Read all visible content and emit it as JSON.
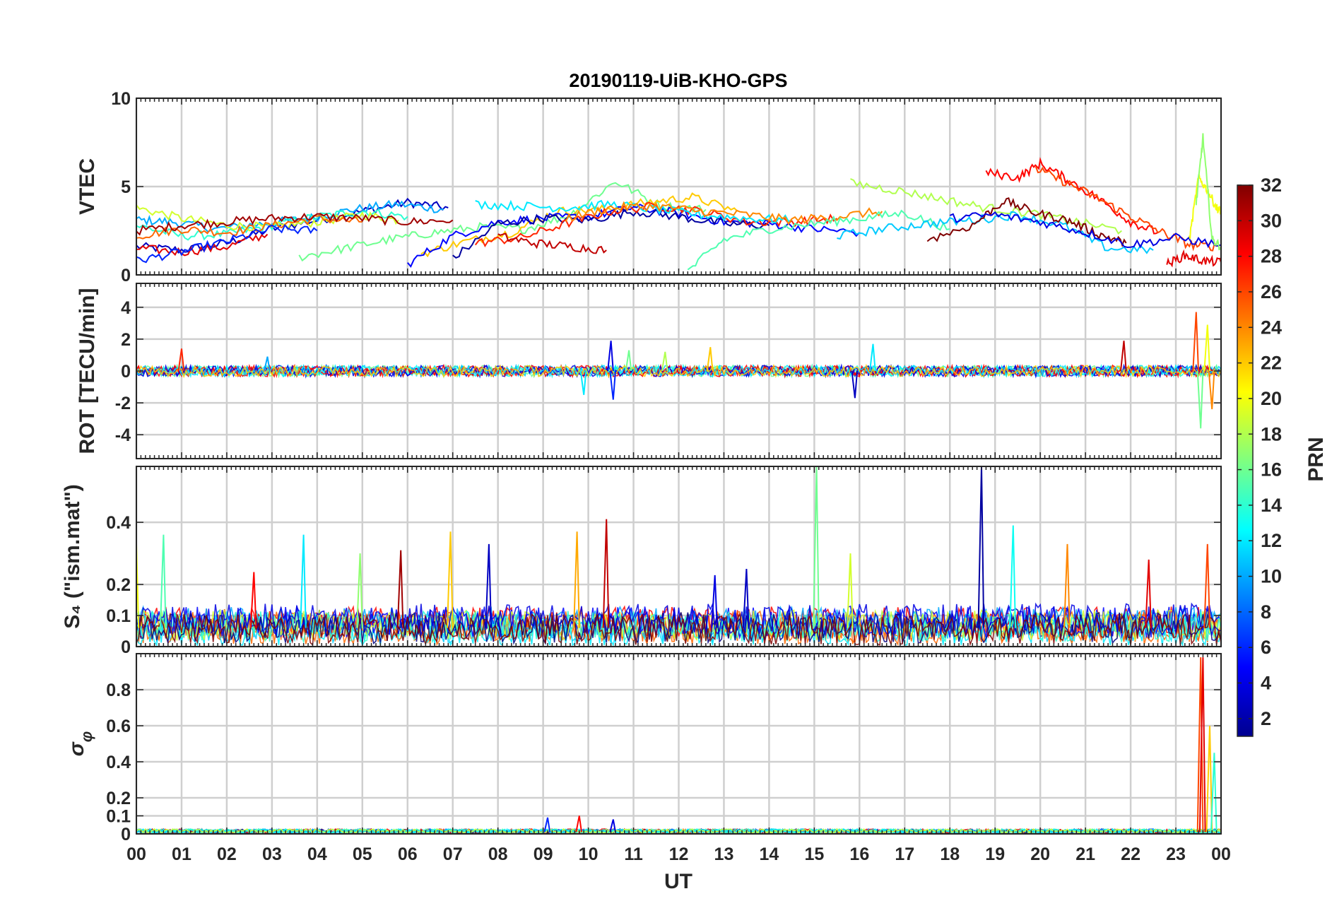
{
  "chart_data": {
    "type": "line",
    "title": "20190119-UiB-KHO-GPS",
    "xlabel": "UT",
    "x_tick_labels": [
      "00",
      "01",
      "02",
      "03",
      "04",
      "05",
      "06",
      "07",
      "08",
      "09",
      "10",
      "11",
      "12",
      "13",
      "14",
      "15",
      "16",
      "17",
      "18",
      "19",
      "20",
      "21",
      "22",
      "23",
      "00"
    ],
    "xlim": [
      0,
      24
    ],
    "grid": true,
    "colorbar": {
      "label": "PRN",
      "range": [
        1,
        32
      ],
      "ticks": [
        "2",
        "4",
        "6",
        "8",
        "10",
        "12",
        "14",
        "16",
        "18",
        "20",
        "22",
        "24",
        "26",
        "28",
        "30",
        "32"
      ],
      "colormap": "jet",
      "placement": "right"
    },
    "panels": [
      {
        "id": "vtec",
        "ylabel": "VTEC",
        "ylim": [
          0,
          10
        ],
        "y_ticks": [
          0,
          5,
          10
        ],
        "y_tick_labels": [
          "0",
          "5",
          "10"
        ],
        "description_series": "one line per GPS satellite PRN, coloured by PRN",
        "series": [
          {
            "prn": 3,
            "x": [
              0,
              1,
              2,
              3,
              4,
              5,
              6,
              6.9
            ],
            "y": [
              1.6,
              1.4,
              1.8,
              2.6,
              3.1,
              3.6,
              4.1,
              3.8
            ]
          },
          {
            "prn": 10,
            "x": [
              0,
              0.8,
              1.8,
              2.8,
              3.8,
              4.8,
              5.8,
              6.8
            ],
            "y": [
              3.1,
              3.0,
              2.6,
              2.9,
              3.2,
              3.7,
              4.0,
              3.7
            ]
          },
          {
            "prn": 14,
            "x": [
              0,
              1,
              2,
              3,
              4,
              5,
              6
            ],
            "y": [
              2.8,
              2.2,
              2.3,
              2.8,
              3.3,
              3.6,
              3.3
            ]
          },
          {
            "prn": 19,
            "x": [
              0,
              1,
              2,
              3,
              4,
              5,
              5.8
            ],
            "y": [
              3.8,
              3.2,
              2.8,
              2.7,
              3.0,
              3.4,
              3.1
            ]
          },
          {
            "prn": 25,
            "x": [
              0,
              1,
              2,
              3,
              4,
              5
            ],
            "y": [
              2.2,
              2.6,
              2.4,
              2.8,
              3.2,
              3.0
            ]
          },
          {
            "prn": 29,
            "x": [
              0,
              1,
              2,
              2.9
            ],
            "y": [
              1.5,
              1.3,
              1.6,
              2.3
            ]
          },
          {
            "prn": 31,
            "x": [
              0,
              1,
              2,
              3,
              4,
              5,
              6,
              7
            ],
            "y": [
              2.5,
              2.8,
              3.0,
              3.2,
              3.3,
              3.2,
              3.0,
              3.1
            ]
          },
          {
            "prn": 6,
            "x": [
              0,
              1,
              2,
              3,
              4
            ],
            "y": [
              0.8,
              1.3,
              1.9,
              2.6,
              2.5
            ]
          },
          {
            "prn": 16,
            "x": [
              3.6,
              4.6,
              5.6,
              6.6,
              7.6,
              8.6,
              9.6,
              10.6,
              11.6,
              12.6
            ],
            "y": [
              1.0,
              1.5,
              2.0,
              2.4,
              2.7,
              2.6,
              3.4,
              5.3,
              3.9,
              3.7
            ]
          },
          {
            "prn": 22,
            "x": [
              6.3,
              7.3,
              8.3,
              9.3,
              10.3,
              11.3,
              12.3,
              13.3
            ],
            "y": [
              1.2,
              1.9,
              2.4,
              3.6,
              3.7,
              4.1,
              4.4,
              3.6
            ]
          },
          {
            "prn": 5,
            "x": [
              6.0,
              7,
              8,
              9,
              10,
              11,
              12,
              13,
              14,
              15,
              16
            ],
            "y": [
              0.6,
              2.2,
              3.0,
              3.2,
              3.3,
              3.8,
              3.5,
              3.0,
              2.9,
              2.6,
              2.4
            ]
          },
          {
            "prn": 2,
            "x": [
              7.0,
              8,
              9,
              10,
              11,
              12,
              13,
              14
            ],
            "y": [
              0.9,
              2.9,
              3.2,
              3.1,
              3.6,
              3.3,
              2.9,
              2.8
            ]
          },
          {
            "prn": 27,
            "x": [
              7.5,
              8.5,
              9.5,
              10.5,
              11.5,
              12.5,
              13.5,
              14.5,
              15.5
            ],
            "y": [
              1.8,
              2.1,
              2.9,
              3.6,
              3.9,
              3.6,
              3.0,
              3.0,
              3.2
            ]
          },
          {
            "prn": 30,
            "x": [
              8,
              8.8,
              9.6,
              10.4
            ],
            "y": [
              2.2,
              1.8,
              1.6,
              1.4
            ]
          },
          {
            "prn": 12,
            "x": [
              7.5,
              8.5,
              9.5,
              10.5,
              11.5,
              12.5,
              13.5,
              14.5
            ],
            "y": [
              4.0,
              3.9,
              3.8,
              4.0,
              3.7,
              3.4,
              3.2,
              3.1
            ]
          },
          {
            "prn": 24,
            "x": [
              9.5,
              10.5,
              11.5,
              12.5,
              13.5,
              14.5,
              15.5,
              16.5
            ],
            "y": [
              3.2,
              3.8,
              3.9,
              3.6,
              3.4,
              3.1,
              3.3,
              3.6
            ]
          },
          {
            "prn": 15,
            "x": [
              12.2,
              13,
              14,
              15,
              16,
              17,
              18
            ],
            "y": [
              0.2,
              2.0,
              2.6,
              2.9,
              3.2,
              3.5,
              2.6
            ]
          },
          {
            "prn": 18,
            "x": [
              15.8,
              16.8,
              17.8,
              18.8,
              19.8,
              20.8,
              21.8
            ],
            "y": [
              5.2,
              4.8,
              4.3,
              3.8,
              3.5,
              3.0,
              2.5
            ]
          },
          {
            "prn": 11,
            "x": [
              15.5,
              16.5,
              17.5,
              18.5,
              19.5,
              20.5,
              21.5,
              22.5
            ],
            "y": [
              2.2,
              2.6,
              2.9,
              3.1,
              3.4,
              2.8,
              1.5,
              1.4
            ]
          },
          {
            "prn": 28,
            "x": [
              18.8,
              19.5,
              20,
              20.6,
              21.3,
              22,
              22.6
            ],
            "y": [
              5.8,
              5.5,
              6.3,
              5.4,
              4.3,
              3.0,
              2.4
            ]
          },
          {
            "prn": 26,
            "x": [
              19.9,
              20.6,
              21.3,
              22,
              22.7,
              23.3,
              23.9
            ],
            "y": [
              6.0,
              5.2,
              4.3,
              3.3,
              2.4,
              1.7,
              1.6
            ]
          },
          {
            "prn": 32,
            "x": [
              17.5,
              18.5,
              19.2,
              19.9,
              20.6,
              21.3,
              21.9
            ],
            "y": [
              2.0,
              2.8,
              4.2,
              3.5,
              3.1,
              2.3,
              1.8
            ]
          },
          {
            "prn": 4,
            "x": [
              18,
              19,
              20,
              21,
              22,
              23,
              24
            ],
            "y": [
              3.2,
              3.4,
              3.0,
              2.4,
              1.7,
              2.1,
              1.7
            ]
          },
          {
            "prn": 20,
            "x": [
              23.3,
              23.5,
              23.7,
              23.9,
              24
            ],
            "y": [
              2.0,
              5.5,
              4.8,
              3.8,
              3.6
            ]
          },
          {
            "prn": 17,
            "x": [
              23.45,
              23.6,
              23.8,
              24
            ],
            "y": [
              4.0,
              7.8,
              2.0,
              1.6
            ]
          },
          {
            "prn": 29,
            "x": [
              22.8,
              23.2,
              23.6,
              24
            ],
            "y": [
              0.6,
              1.1,
              0.8,
              0.7
            ]
          }
        ]
      },
      {
        "id": "rot",
        "ylabel": "ROT [TECU/min]",
        "ylim": [
          -5.5,
          5.5
        ],
        "y_ticks": [
          -4,
          -2,
          0,
          2,
          4
        ],
        "y_tick_labels": [
          "-4",
          "-2",
          "0",
          "2",
          "4"
        ],
        "description_series": "rate of TEC per PRN; noise around 0, larger excursions near 10.5 UT, 15.9 UT, 21.8 UT and 23.5-24 UT",
        "peaks": [
          {
            "x": 1.0,
            "y": 1.4,
            "prn": 27
          },
          {
            "x": 2.9,
            "y": 0.9,
            "prn": 10
          },
          {
            "x": 9.9,
            "y": -1.5,
            "prn": 12
          },
          {
            "x": 10.5,
            "y": 1.9,
            "prn": 4
          },
          {
            "x": 10.55,
            "y": -1.8,
            "prn": 6
          },
          {
            "x": 10.9,
            "y": 1.3,
            "prn": 16
          },
          {
            "x": 11.7,
            "y": 1.2,
            "prn": 18
          },
          {
            "x": 12.7,
            "y": 1.5,
            "prn": 22
          },
          {
            "x": 15.9,
            "y": -1.7,
            "prn": 3
          },
          {
            "x": 16.3,
            "y": 1.7,
            "prn": 12
          },
          {
            "x": 21.85,
            "y": 1.9,
            "prn": 30
          },
          {
            "x": 23.45,
            "y": 3.7,
            "prn": 26
          },
          {
            "x": 23.55,
            "y": -3.6,
            "prn": 16
          },
          {
            "x": 23.7,
            "y": 2.9,
            "prn": 20
          },
          {
            "x": 23.8,
            "y": -2.4,
            "prn": 24
          }
        ]
      },
      {
        "id": "s4",
        "ylabel": "S₄ (\"ism.mat\")",
        "ylim": [
          0,
          0.58
        ],
        "y_ticks": [
          0,
          0.1,
          0.2,
          0.4
        ],
        "y_tick_labels": [
          "0",
          "0.1",
          "0.2",
          "0.4"
        ],
        "description_series": "S4 amplitude scintillation index per PRN; baseline ~0.05-0.1 with spikes",
        "peaks": [
          {
            "x": 0.0,
            "y": 0.33,
            "prn": 20
          },
          {
            "x": 0.6,
            "y": 0.36,
            "prn": 15
          },
          {
            "x": 2.6,
            "y": 0.24,
            "prn": 28
          },
          {
            "x": 3.7,
            "y": 0.36,
            "prn": 12
          },
          {
            "x": 4.95,
            "y": 0.3,
            "prn": 17
          },
          {
            "x": 5.85,
            "y": 0.31,
            "prn": 31
          },
          {
            "x": 6.95,
            "y": 0.37,
            "prn": 22
          },
          {
            "x": 7.8,
            "y": 0.33,
            "prn": 3
          },
          {
            "x": 9.75,
            "y": 0.37,
            "prn": 23
          },
          {
            "x": 10.4,
            "y": 0.41,
            "prn": 30
          },
          {
            "x": 12.8,
            "y": 0.23,
            "prn": 4
          },
          {
            "x": 13.5,
            "y": 0.25,
            "prn": 3
          },
          {
            "x": 15.05,
            "y": 0.58,
            "prn": 16
          },
          {
            "x": 15.8,
            "y": 0.3,
            "prn": 19
          },
          {
            "x": 18.7,
            "y": 0.58,
            "prn": 2
          },
          {
            "x": 19.4,
            "y": 0.39,
            "prn": 13
          },
          {
            "x": 20.6,
            "y": 0.33,
            "prn": 24
          },
          {
            "x": 22.4,
            "y": 0.28,
            "prn": 29
          },
          {
            "x": 23.7,
            "y": 0.33,
            "prn": 26
          }
        ]
      },
      {
        "id": "sigphi",
        "ylabel": "σ φ",
        "ylim": [
          0,
          1.0
        ],
        "y_ticks": [
          0,
          0.1,
          0.2,
          0.4,
          0.6,
          0.8
        ],
        "y_tick_labels": [
          "0",
          "0.1",
          "0.2",
          "0.4",
          "0.6",
          "0.8"
        ],
        "description_series": "phase scintillation index per PRN; near 0 all day, large spikes at 23.4-24 UT",
        "peaks": [
          {
            "x": 9.1,
            "y": 0.09,
            "prn": 6
          },
          {
            "x": 9.8,
            "y": 0.1,
            "prn": 28
          },
          {
            "x": 10.55,
            "y": 0.08,
            "prn": 4
          },
          {
            "x": 23.55,
            "y": 0.98,
            "prn": 26
          },
          {
            "x": 23.6,
            "y": 0.98,
            "prn": 29
          },
          {
            "x": 23.75,
            "y": 0.6,
            "prn": 22
          },
          {
            "x": 23.85,
            "y": 0.45,
            "prn": 14
          }
        ]
      }
    ]
  }
}
